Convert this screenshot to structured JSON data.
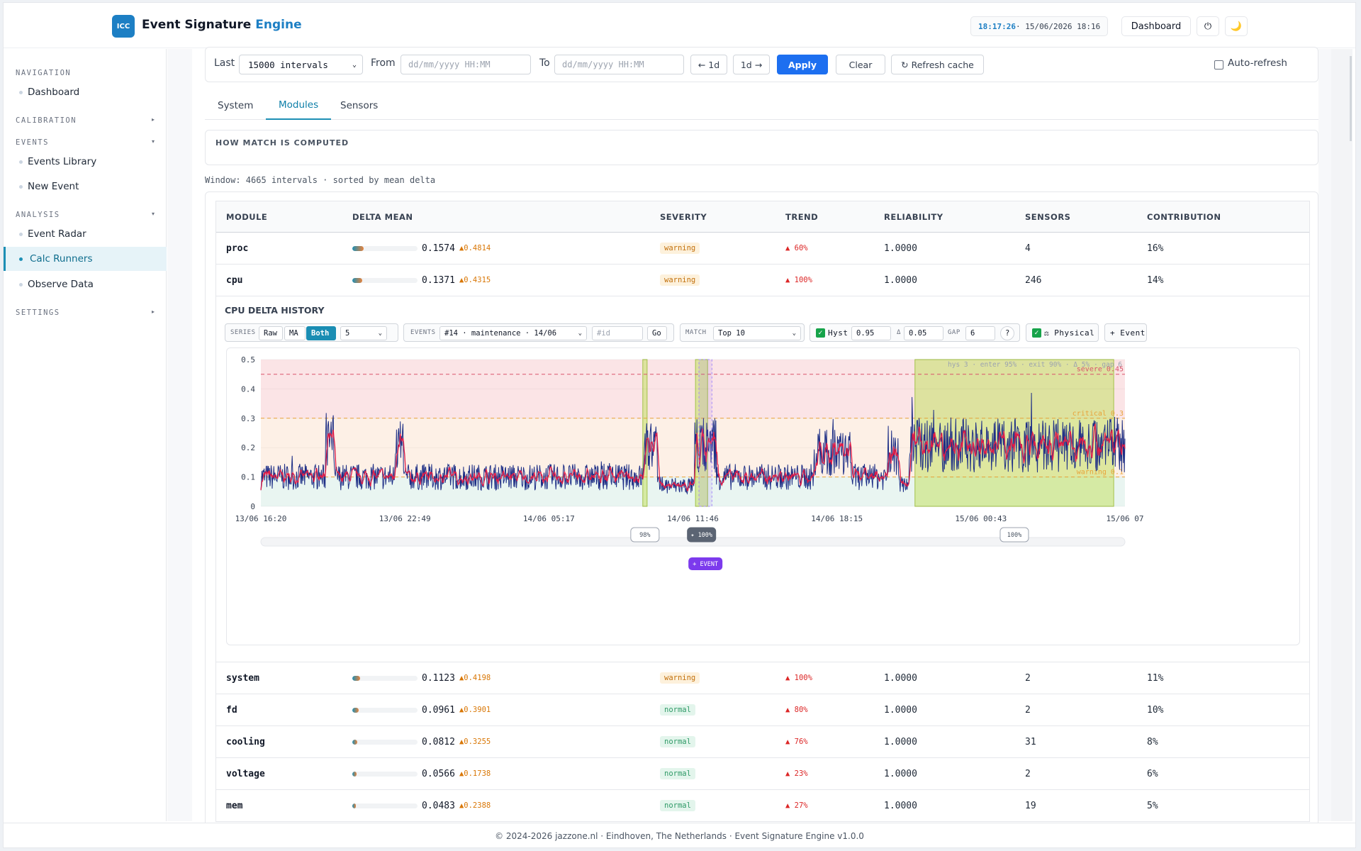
{
  "app": {
    "badge": "ICC",
    "title_main": "Event Signature",
    "title_accent": "Engine"
  },
  "header": {
    "clock_time": "18:17:26",
    "clock_rest": " · 15/06/2026 18:16",
    "dashboard_label": "Dashboard",
    "power_icon": "⏻",
    "moon_icon": "🌙"
  },
  "sidebar": {
    "navigation": "NAVIGATION",
    "dashboard": "Dashboard",
    "calibration": "CALIBRATION",
    "events": "EVENTS",
    "events_library": "Events Library",
    "new_event": "New Event",
    "analysis": "ANALYSIS",
    "event_radar": "Event Radar",
    "calc_runners": "Calc Runners",
    "observe_data": "Observe Data",
    "settings": "SETTINGS"
  },
  "filter": {
    "last_label": "Last",
    "last_value": "15000 intervals",
    "from_label": "From",
    "from_placeholder": "dd/mm/yyyy HH:MM",
    "to_label": "To",
    "to_placeholder": "dd/mm/yyyy HH:MM",
    "back_label": "← 1d",
    "fwd_label": "1d →",
    "apply_label": "Apply",
    "clear_label": "Clear",
    "refresh_label": "↻ Refresh cache",
    "autorefresh_label": "Auto-refresh"
  },
  "tabs": [
    "System",
    "Modules",
    "Sensors"
  ],
  "how": {
    "title": "HOW MATCH IS COMPUTED"
  },
  "window_info": "Window: 4665 intervals · sorted by mean delta",
  "table": {
    "headers": [
      "MODULE",
      "DELTA MEAN",
      "SEVERITY",
      "TREND",
      "RELIABILITY",
      "SENSORS",
      "CONTRIBUTION"
    ],
    "rows": [
      {
        "module": "proc",
        "delta": "0.1574",
        "peak": "▲0.4814",
        "fill": 0.17,
        "severity": "warning",
        "trend": "▲ 60%",
        "reliability": "1.0000",
        "sensors": "4",
        "contribution": "16%"
      },
      {
        "module": "cpu",
        "delta": "0.1371",
        "peak": "▲0.4315",
        "fill": 0.15,
        "severity": "warning",
        "trend": "▲ 100%",
        "reliability": "1.0000",
        "sensors": "246",
        "contribution": "14%"
      },
      {
        "module": "system",
        "delta": "0.1123",
        "peak": "▲0.4198",
        "fill": 0.12,
        "severity": "warning",
        "trend": "▲ 100%",
        "reliability": "1.0000",
        "sensors": "2",
        "contribution": "11%"
      },
      {
        "module": "fd",
        "delta": "0.0961",
        "peak": "▲0.3901",
        "fill": 0.1,
        "severity": "normal",
        "trend": "▲ 80%",
        "reliability": "1.0000",
        "sensors": "2",
        "contribution": "10%"
      },
      {
        "module": "cooling",
        "delta": "0.0812",
        "peak": "▲0.3255",
        "fill": 0.08,
        "severity": "normal",
        "trend": "▲ 76%",
        "reliability": "1.0000",
        "sensors": "31",
        "contribution": "8%"
      },
      {
        "module": "voltage",
        "delta": "0.0566",
        "peak": "▲0.1738",
        "fill": 0.06,
        "severity": "normal",
        "trend": "▲ 23%",
        "reliability": "1.0000",
        "sensors": "2",
        "contribution": "6%"
      },
      {
        "module": "mem",
        "delta": "0.0483",
        "peak": "▲0.2388",
        "fill": 0.05,
        "severity": "normal",
        "trend": "▲ 27%",
        "reliability": "1.0000",
        "sensors": "19",
        "contribution": "5%"
      }
    ]
  },
  "history": {
    "title": "CPU DELTA HISTORY",
    "series_label": "SERIES",
    "raw": "Raw",
    "ma": "MA",
    "both": "Both",
    "ma_window": "5",
    "events_label": "EVENTS",
    "event_selected": "#14 · maintenance · 14/06",
    "id_placeholder": "#id",
    "go": "Go",
    "match_label": "MATCH",
    "match_value": "Top 10",
    "hyst_label": "Hyst",
    "hyst_value": "0.95",
    "delta_label": "Δ",
    "delta_value": "0.05",
    "gap_label": "GAP",
    "gap_value": "6",
    "help": "?",
    "physical_label": "⚖ Physical",
    "add_event": "+ Event"
  },
  "chart_data": {
    "type": "line",
    "ylim": [
      0,
      0.5
    ],
    "yticks": [
      "0",
      "0.1",
      "0.2",
      "0.3",
      "0.4",
      "0.5"
    ],
    "xticks": [
      "13/06 16:20",
      "13/06 22:49",
      "14/06 05:17",
      "14/06 11:46",
      "14/06 18:15",
      "15/06 00:43",
      "15/06 07"
    ],
    "thresholds": [
      {
        "name": "warning",
        "value": 0.1,
        "label": "warning 0.1",
        "color": "#e8a33a"
      },
      {
        "name": "critical",
        "value": 0.3,
        "label": "critical 0.3",
        "color": "#e8a33a"
      },
      {
        "name": "severe",
        "value": 0.45,
        "label": "severe 0.45",
        "color": "#d9536b"
      }
    ],
    "hyst_annotation": "hys 3 · enter 95% · exit 90% · Δ 5% · gap 6",
    "series": [
      {
        "name": "Raw",
        "color": "#1e2f86"
      },
      {
        "name": "MA",
        "color": "#e11d48"
      }
    ],
    "segments": [
      {
        "from": 0,
        "to": 0.075,
        "base": 0.1
      },
      {
        "from": 0.075,
        "to": 0.085,
        "base": 0.22,
        "spike": 0.33
      },
      {
        "from": 0.085,
        "to": 0.155,
        "base": 0.1
      },
      {
        "from": 0.155,
        "to": 0.165,
        "base": 0.2,
        "spike": 0.34
      },
      {
        "from": 0.165,
        "to": 0.443,
        "base": 0.1
      },
      {
        "from": 0.443,
        "to": 0.459,
        "base": 0.2,
        "spike": 0.27
      },
      {
        "from": 0.459,
        "to": 0.502,
        "base": 0.07
      },
      {
        "from": 0.502,
        "to": 0.527,
        "base": 0.21,
        "spike": 0.32
      },
      {
        "from": 0.527,
        "to": 0.64,
        "base": 0.1
      },
      {
        "from": 0.64,
        "to": 0.683,
        "base": 0.18,
        "spike": 0.33
      },
      {
        "from": 0.683,
        "to": 0.725,
        "base": 0.1
      },
      {
        "from": 0.725,
        "to": 0.738,
        "base": 0.19,
        "spike": 0.31
      },
      {
        "from": 0.738,
        "to": 0.75,
        "base": 0.08
      },
      {
        "from": 0.75,
        "to": 1,
        "base": 0.21,
        "spike": 0.43
      }
    ],
    "match_regions": [
      {
        "from": 0.442,
        "to": 0.447,
        "label": "98%"
      },
      {
        "from": 0.503,
        "to": 0.517,
        "label": "✦ 100%"
      },
      {
        "from": 0.757,
        "to": 0.987,
        "label": "100%"
      }
    ],
    "event_marker": {
      "from": 0.507,
      "to": 0.522,
      "label": "+ EVENT"
    }
  },
  "footer": "© 2024-2026 jazzone.nl · Eindhoven, The Netherlands · Event Signature Engine v1.0.0"
}
